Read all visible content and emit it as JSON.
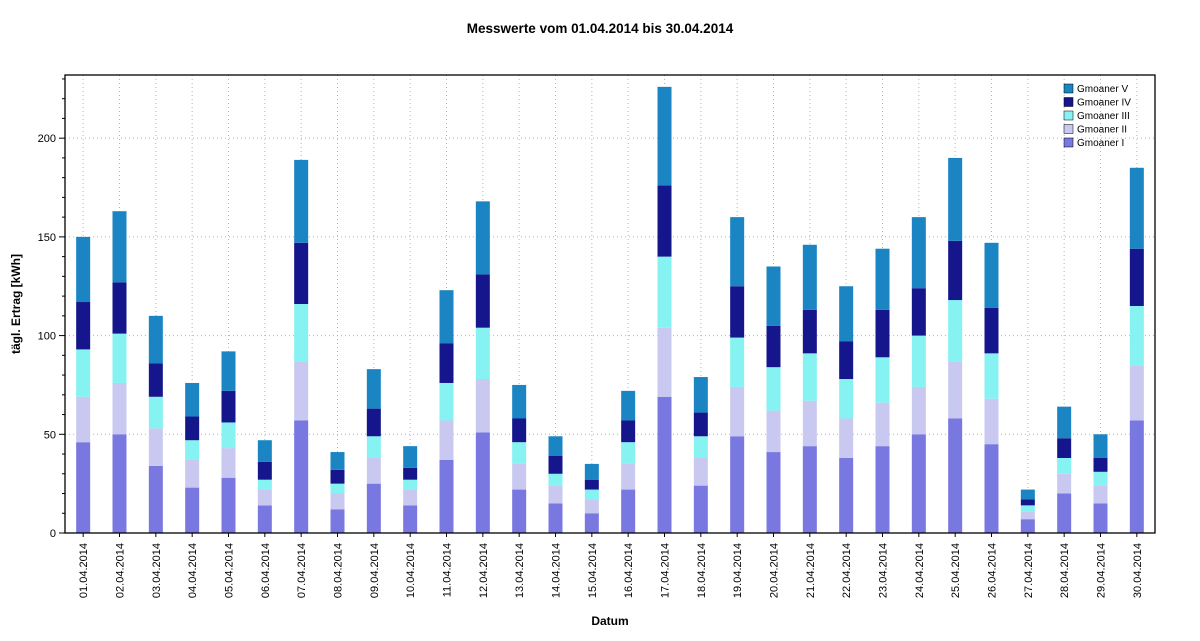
{
  "page": {
    "background": "#ffffff"
  },
  "chart_data": {
    "type": "bar",
    "stacked": true,
    "title": "Messwerte vom 01.04.2014 bis 30.04.2014",
    "xlabel": "Datum",
    "ylabel": "tägl. Ertrag [kWh]",
    "ylim": [
      0,
      232
    ],
    "yticks": [
      0,
      50,
      100,
      150,
      200
    ],
    "grid": "dotted",
    "legend_position": "top-right-inside",
    "categories": [
      "01.04.2014",
      "02.04.2014",
      "03.04.2014",
      "04.04.2014",
      "05.04.2014",
      "06.04.2014",
      "07.04.2014",
      "08.04.2014",
      "09.04.2014",
      "10.04.2014",
      "11.04.2014",
      "12.04.2014",
      "13.04.2014",
      "14.04.2014",
      "15.04.2014",
      "16.04.2014",
      "17.04.2014",
      "18.04.2014",
      "19.04.2014",
      "20.04.2014",
      "21.04.2014",
      "22.04.2014",
      "23.04.2014",
      "24.04.2014",
      "25.04.2014",
      "26.04.2014",
      "27.04.2014",
      "28.04.2014",
      "29.04.2014",
      "30.04.2014"
    ],
    "series": [
      {
        "name": "Gmoaner I",
        "color": "#7878e0",
        "values": [
          46,
          50,
          34,
          23,
          28,
          14,
          57,
          12,
          25,
          14,
          37,
          51,
          22,
          15,
          10,
          22,
          69,
          24,
          49,
          41,
          44,
          38,
          44,
          50,
          58,
          45,
          7,
          20,
          15,
          57
        ]
      },
      {
        "name": "Gmoaner II",
        "color": "#c8c8f0",
        "values": [
          23,
          26,
          19,
          14,
          15,
          8,
          30,
          8,
          13,
          8,
          20,
          27,
          13,
          9,
          7,
          13,
          35,
          14,
          25,
          21,
          23,
          20,
          22,
          24,
          29,
          23,
          4,
          10,
          9,
          28
        ]
      },
      {
        "name": "Gmoaner III",
        "color": "#87f2f2",
        "values": [
          24,
          25,
          16,
          10,
          13,
          5,
          29,
          5,
          11,
          5,
          19,
          26,
          11,
          6,
          5,
          11,
          36,
          11,
          25,
          22,
          24,
          20,
          23,
          26,
          31,
          23,
          3,
          8,
          7,
          30
        ]
      },
      {
        "name": "Gmoaner IV",
        "color": "#15158c",
        "values": [
          24,
          26,
          17,
          12,
          16,
          9,
          31,
          7,
          14,
          6,
          20,
          27,
          12,
          9,
          5,
          11,
          36,
          12,
          26,
          21,
          22,
          19,
          24,
          24,
          30,
          23,
          3,
          10,
          7,
          29
        ]
      },
      {
        "name": "Gmoaner V",
        "color": "#1a85c2",
        "values": [
          33,
          36,
          24,
          17,
          20,
          11,
          42,
          9,
          20,
          11,
          27,
          37,
          17,
          10,
          8,
          15,
          50,
          18,
          35,
          30,
          33,
          28,
          31,
          36,
          42,
          33,
          5,
          16,
          12,
          41
        ]
      }
    ],
    "legend_order": [
      "Gmoaner V",
      "Gmoaner IV",
      "Gmoaner III",
      "Gmoaner II",
      "Gmoaner I"
    ]
  }
}
